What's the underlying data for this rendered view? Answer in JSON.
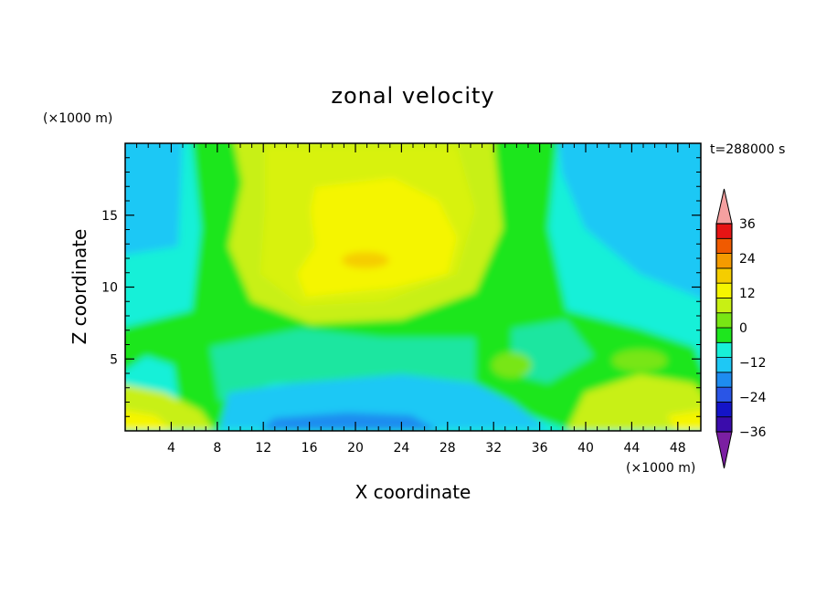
{
  "chart_data": {
    "type": "heatmap",
    "title": "zonal velocity",
    "xlabel": "X coordinate",
    "ylabel": "Z coordinate",
    "x_unit": "(×1000 m)",
    "y_unit": "(×1000 m)",
    "time_label": "t=288000 s",
    "xlim": [
      0,
      50
    ],
    "ylim": [
      0,
      20
    ],
    "x_ticks": [
      4,
      8,
      12,
      16,
      20,
      24,
      28,
      32,
      36,
      40,
      44,
      48
    ],
    "y_ticks": [
      5,
      10,
      15
    ],
    "colorbar": {
      "levels": [
        -42,
        -36,
        -30,
        -24,
        -18,
        -12,
        -6,
        0,
        6,
        12,
        18,
        24,
        30,
        36,
        42
      ],
      "labels": [
        36,
        24,
        12,
        0,
        -12,
        -24,
        -36
      ],
      "colors": [
        "#7b1fa2",
        "#3a0cab",
        "#1414c8",
        "#2a55e6",
        "#1e8cf0",
        "#1ec8f5",
        "#18f0d8",
        "#1ee61e",
        "#78e614",
        "#c8f014",
        "#f5f500",
        "#f5cd00",
        "#f59b00",
        "#f05a00",
        "#e61414",
        "#f4a0a0"
      ]
    },
    "grid": false,
    "legend": "right"
  }
}
